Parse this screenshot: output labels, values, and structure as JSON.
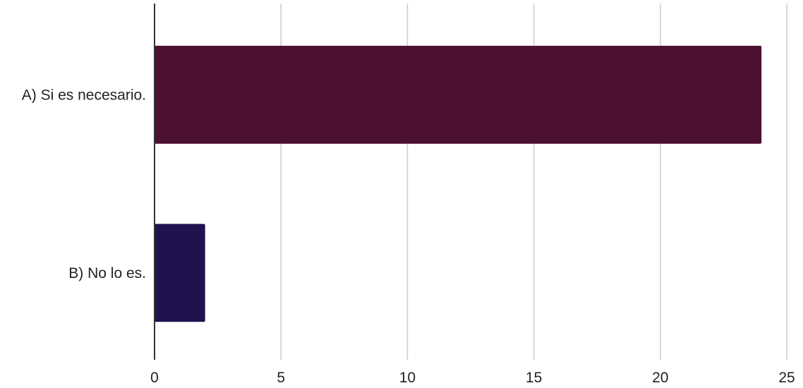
{
  "chart_data": {
    "type": "bar",
    "orientation": "horizontal",
    "categories": [
      "A) Si es necesario.",
      "B) No lo es."
    ],
    "values": [
      24,
      2
    ],
    "colors": [
      "#4c1130",
      "#20124d"
    ],
    "xlim": [
      0,
      25
    ],
    "xticks": [
      "0",
      "5",
      "10",
      "15",
      "20",
      "25"
    ],
    "title": "",
    "xlabel": "",
    "ylabel": "",
    "grid": true,
    "gridline_color": "#cccccc",
    "axis_color": "#333333"
  }
}
